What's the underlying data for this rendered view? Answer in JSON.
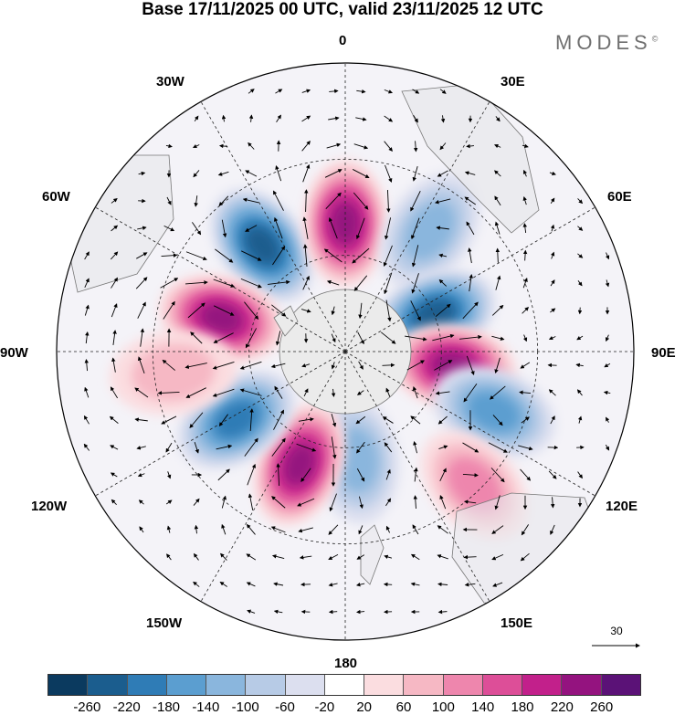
{
  "header": {
    "title": "Base 17/11/2025 00 UTC, valid 23/11/2025 12 UTC",
    "brand": "MODES",
    "brand_mark": "©"
  },
  "map": {
    "projection": "south-polar-stereographic",
    "longitude_labels": {
      "lon_0": "0",
      "lon_30e": "30E",
      "lon_60e": "60E",
      "lon_90e": "90E",
      "lon_120e": "120E",
      "lon_150e": "150E",
      "lon_180": "180",
      "lon_150w": "150W",
      "lon_120w": "120W",
      "lon_90w": "90W",
      "lon_60w": "60W",
      "lon_30w": "30W"
    },
    "anomaly_centers": [
      {
        "name": "neg-south-atlantic",
        "lon": -38,
        "colatitude": 42,
        "value": -260
      },
      {
        "name": "pos-south-atlantic",
        "lon": 0,
        "colatitude": 40,
        "value": 260
      },
      {
        "name": "neg-africa-south",
        "lon": 35,
        "colatitude": 46,
        "value": -140
      },
      {
        "name": "neg-indian-west",
        "lon": 68,
        "colatitude": 30,
        "value": -260
      },
      {
        "name": "pos-indian-central",
        "lon": 98,
        "colatitude": 34,
        "value": 260
      },
      {
        "name": "neg-indian-east",
        "lon": 112,
        "colatitude": 50,
        "value": -180
      },
      {
        "name": "pos-australia",
        "lon": 136,
        "colatitude": 58,
        "value": 140
      },
      {
        "name": "neg-tasman",
        "lon": 174,
        "colatitude": 34,
        "value": -140
      },
      {
        "name": "pos-pacific-west",
        "lon": -158,
        "colatitude": 38,
        "value": 260
      },
      {
        "name": "neg-pacific-central",
        "lon": -122,
        "colatitude": 40,
        "value": -220
      },
      {
        "name": "pos-pacific-east",
        "lon": -75,
        "colatitude": 40,
        "value": 260
      },
      {
        "name": "pos-pacific-far-east",
        "lon": -97,
        "colatitude": 54,
        "value": 100
      }
    ]
  },
  "wind_reference": {
    "value": "30"
  },
  "legend": {
    "colors": [
      "#0b3a5f",
      "#1b5d8e",
      "#2f7cb6",
      "#5b9ed0",
      "#8ab6dd",
      "#b7cbe6",
      "#dcdfef",
      "#ffffff",
      "#fbdde0",
      "#f6b8c4",
      "#ee86ad",
      "#dd4e98",
      "#c2208b",
      "#94137f",
      "#5b1277"
    ],
    "labels": [
      "-260",
      "-220",
      "-180",
      "-140",
      "-100",
      "-60",
      "-20",
      "20",
      "60",
      "100",
      "140",
      "180",
      "220",
      "260"
    ]
  }
}
